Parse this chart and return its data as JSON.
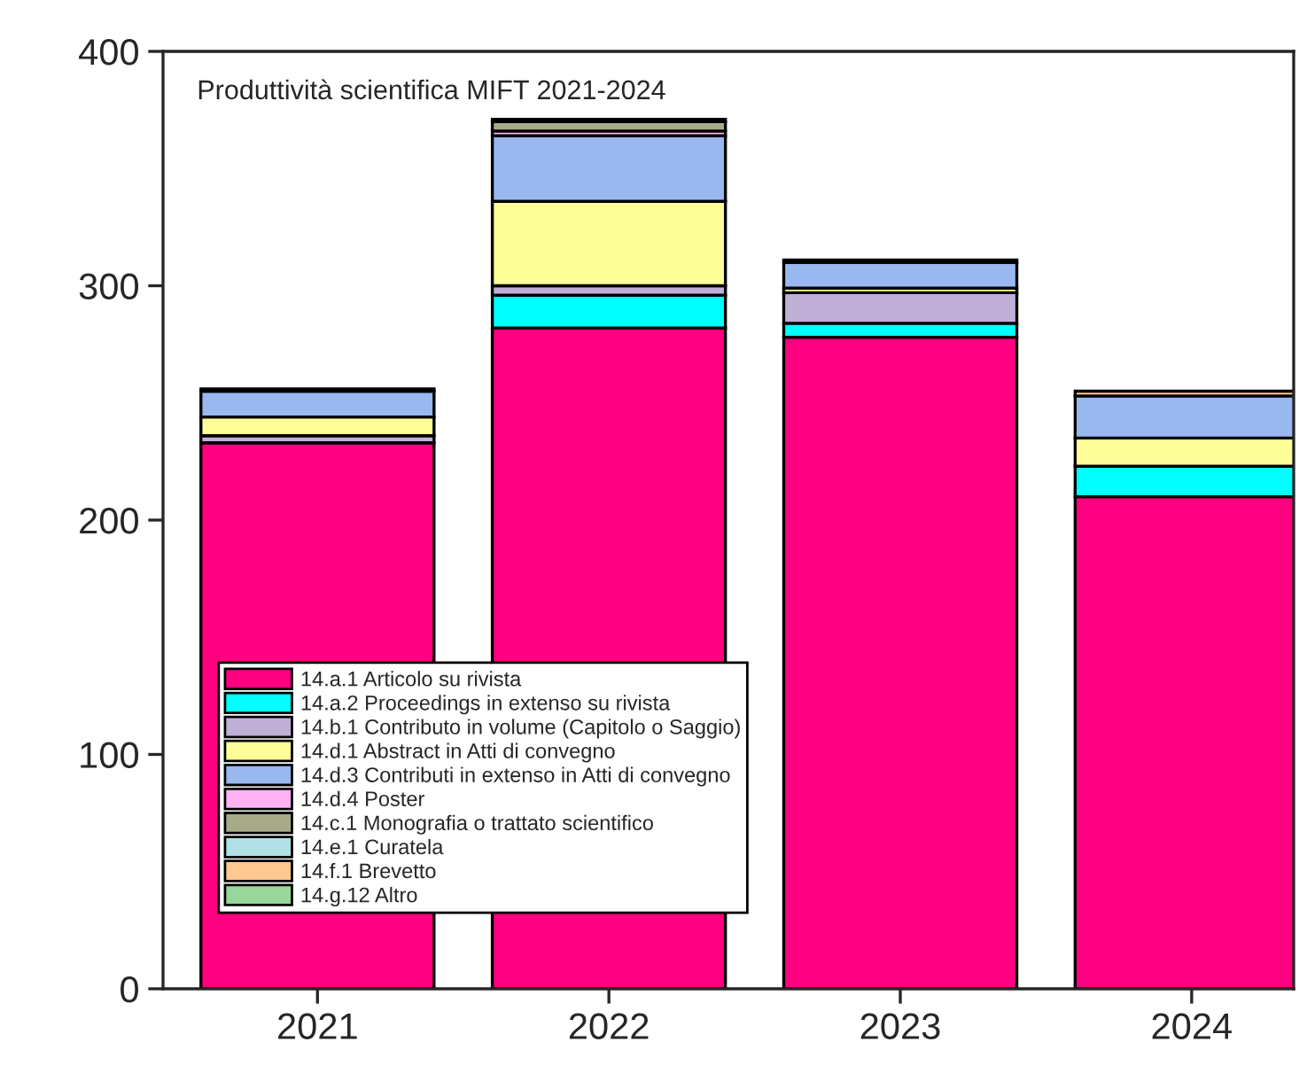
{
  "chart_data": {
    "type": "bar",
    "stacked": true,
    "title": "Produttività scientifica MIFT 2021-2024",
    "categories": [
      "2021",
      "2022",
      "2023",
      "2024"
    ],
    "series": [
      {
        "name": "14.a.1 Articolo su rivista",
        "color": "#ff0080",
        "values": [
          233,
          282,
          278,
          210
        ]
      },
      {
        "name": "14.a.2 Proceedings in extenso su rivista",
        "color": "#00ffff",
        "values": [
          null,
          14,
          6,
          13
        ]
      },
      {
        "name": "14.b.1 Contributo in volume (Capitolo o Saggio)",
        "color": "#c0b0d8",
        "values": [
          3,
          4,
          13,
          null
        ]
      },
      {
        "name": "14.d.1 Abstract in Atti di convegno",
        "color": "#ffff99",
        "values": [
          8,
          36,
          2,
          12
        ]
      },
      {
        "name": "14.d.3 Contributi in extenso in Atti di convegno",
        "color": "#99b8f0",
        "values": [
          11,
          28,
          11,
          18
        ]
      },
      {
        "name": "14.d.4 Poster",
        "color": "#ffb3f5",
        "values": [
          0,
          2,
          0,
          0
        ]
      },
      {
        "name": "14.c.1 Monografia o trattato scientifico",
        "color": "#a8ab88",
        "values": [
          1,
          4,
          1,
          null
        ]
      },
      {
        "name": "14.e.1 Curatela",
        "color": "#b0e0e6",
        "values": [
          0,
          null,
          0,
          null
        ]
      },
      {
        "name": "14.f.1 Brevetto",
        "color": "#ffc890",
        "values": [
          0,
          0,
          0,
          2
        ]
      },
      {
        "name": "14.g.12 Altro",
        "color": "#99d699",
        "values": [
          0,
          1,
          0,
          0
        ]
      }
    ],
    "ylim": [
      0,
      400
    ],
    "yticks": [
      0,
      100,
      200,
      300,
      400
    ],
    "grid": false,
    "legend": "bottom left"
  }
}
